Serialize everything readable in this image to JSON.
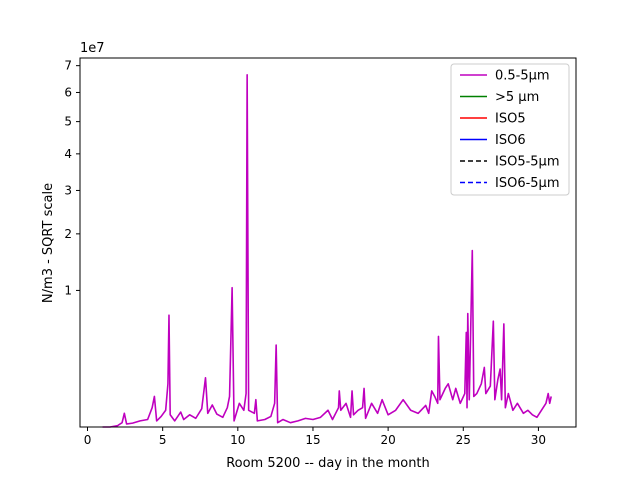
{
  "chart_data": {
    "type": "line",
    "xlabel": "Room 5200 -- day in the month",
    "ylabel": "N/m3 - SQRT scale",
    "scale_label": "1e7",
    "y_scale": "sqrt",
    "xlim": [
      -0.5,
      32.5
    ],
    "ylim": [
      0,
      73000000
    ],
    "x_ticks": [
      0,
      5,
      10,
      15,
      20,
      25,
      30
    ],
    "x_tick_labels": [
      "0",
      "5",
      "10",
      "15",
      "20",
      "25",
      "30"
    ],
    "y_ticks": [
      10000000,
      20000000,
      30000000,
      40000000,
      50000000,
      60000000,
      70000000
    ],
    "y_tick_labels": [
      "1",
      "2",
      "3",
      "4",
      "5",
      "6",
      "7"
    ],
    "grid": false,
    "legend_position": "top-right",
    "series": [
      {
        "name": "0.5-5µm",
        "color": "#bf00bf",
        "dash": "solid",
        "points": [
          [
            1.0,
            0
          ],
          [
            1.5,
            0
          ],
          [
            2.0,
            1000
          ],
          [
            2.3,
            10000
          ],
          [
            2.45,
            100000
          ],
          [
            2.6,
            5000
          ],
          [
            3.0,
            8000
          ],
          [
            3.5,
            20000
          ],
          [
            4.0,
            30000
          ],
          [
            4.3,
            200000
          ],
          [
            4.45,
            500000
          ],
          [
            4.6,
            20000
          ],
          [
            4.9,
            60000
          ],
          [
            5.2,
            150000
          ],
          [
            5.35,
            1000000
          ],
          [
            5.42,
            6700000
          ],
          [
            5.5,
            80000
          ],
          [
            5.8,
            20000
          ],
          [
            6.2,
            120000
          ],
          [
            6.4,
            30000
          ],
          [
            6.8,
            80000
          ],
          [
            7.2,
            40000
          ],
          [
            7.6,
            180000
          ],
          [
            7.85,
            1300000
          ],
          [
            8.0,
            100000
          ],
          [
            8.3,
            260000
          ],
          [
            8.6,
            90000
          ],
          [
            9.0,
            50000
          ],
          [
            9.3,
            200000
          ],
          [
            9.45,
            500000
          ],
          [
            9.62,
            10400000
          ],
          [
            9.75,
            20000
          ],
          [
            10.1,
            300000
          ],
          [
            10.4,
            150000
          ],
          [
            10.55,
            600000
          ],
          [
            10.62,
            66500000
          ],
          [
            10.72,
            150000
          ],
          [
            11.1,
            100000
          ],
          [
            11.2,
            400000
          ],
          [
            11.3,
            20000
          ],
          [
            11.8,
            30000
          ],
          [
            12.2,
            60000
          ],
          [
            12.45,
            300000
          ],
          [
            12.55,
            3600000
          ],
          [
            12.65,
            10000
          ],
          [
            13.0,
            30000
          ],
          [
            13.5,
            10000
          ],
          [
            14.0,
            20000
          ],
          [
            14.5,
            40000
          ],
          [
            15.0,
            30000
          ],
          [
            15.5,
            50000
          ],
          [
            16.0,
            150000
          ],
          [
            16.3,
            30000
          ],
          [
            16.7,
            200000
          ],
          [
            16.75,
            700000
          ],
          [
            16.85,
            150000
          ],
          [
            17.2,
            300000
          ],
          [
            17.5,
            50000
          ],
          [
            17.6,
            700000
          ],
          [
            17.7,
            80000
          ],
          [
            18.0,
            150000
          ],
          [
            18.3,
            200000
          ],
          [
            18.4,
            800000
          ],
          [
            18.5,
            40000
          ],
          [
            18.9,
            300000
          ],
          [
            19.3,
            100000
          ],
          [
            19.6,
            400000
          ],
          [
            20.0,
            80000
          ],
          [
            20.5,
            150000
          ],
          [
            21.0,
            400000
          ],
          [
            21.5,
            150000
          ],
          [
            22.0,
            100000
          ],
          [
            22.5,
            250000
          ],
          [
            22.7,
            100000
          ],
          [
            22.9,
            700000
          ],
          [
            23.1,
            500000
          ],
          [
            23.3,
            300000
          ],
          [
            23.35,
            4400000
          ],
          [
            23.45,
            400000
          ],
          [
            23.8,
            800000
          ],
          [
            24.0,
            1000000
          ],
          [
            24.3,
            400000
          ],
          [
            24.5,
            800000
          ],
          [
            24.8,
            300000
          ],
          [
            25.1,
            600000
          ],
          [
            25.2,
            4800000
          ],
          [
            25.25,
            200000
          ],
          [
            25.3,
            6900000
          ],
          [
            25.4,
            400000
          ],
          [
            25.6,
            16700000
          ],
          [
            25.7,
            500000
          ],
          [
            25.9,
            600000
          ],
          [
            26.2,
            1000000
          ],
          [
            26.4,
            1900000
          ],
          [
            26.5,
            600000
          ],
          [
            26.8,
            900000
          ],
          [
            27.0,
            6000000
          ],
          [
            27.1,
            400000
          ],
          [
            27.3,
            1200000
          ],
          [
            27.45,
            1800000
          ],
          [
            27.55,
            400000
          ],
          [
            27.7,
            5700000
          ],
          [
            27.8,
            200000
          ],
          [
            28.0,
            600000
          ],
          [
            28.3,
            150000
          ],
          [
            28.6,
            300000
          ],
          [
            29.0,
            100000
          ],
          [
            29.3,
            150000
          ],
          [
            29.6,
            80000
          ],
          [
            29.9,
            50000
          ],
          [
            30.2,
            150000
          ],
          [
            30.5,
            300000
          ],
          [
            30.65,
            600000
          ],
          [
            30.75,
            300000
          ],
          [
            30.85,
            500000
          ]
        ]
      },
      {
        "name": ">5 µm",
        "color": "#008000",
        "dash": "solid",
        "points": []
      },
      {
        "name": "ISO5",
        "color": "#ff0000",
        "dash": "solid",
        "points": []
      },
      {
        "name": "ISO6",
        "color": "#0000ff",
        "dash": "solid",
        "points": []
      },
      {
        "name": "ISO5-5µm",
        "color": "#000000",
        "dash": "dashed",
        "points": []
      },
      {
        "name": "ISO6-5µm",
        "color": "#0000ff",
        "dash": "dashed",
        "points": []
      }
    ]
  }
}
